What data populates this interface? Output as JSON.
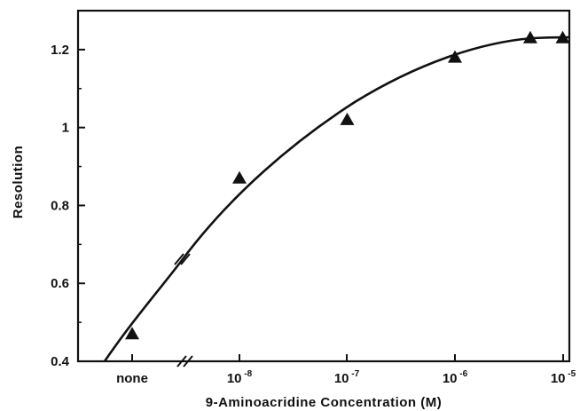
{
  "chart_data": {
    "type": "scatter",
    "xlabel": "9-Aminoacridine  Concentration  (M)",
    "ylabel": "Resolution",
    "ylim": [
      0.4,
      1.3
    ],
    "x_tick_labels": [
      {
        "base": "none",
        "exp": ""
      },
      {
        "base": "10",
        "exp": "-8"
      },
      {
        "base": "10",
        "exp": "-7"
      },
      {
        "base": "10",
        "exp": "-6"
      },
      {
        "base": "10",
        "exp": "-5"
      }
    ],
    "y_ticks": [
      "0.4",
      "0.6",
      "0.8",
      "1",
      "1.2"
    ],
    "x_scale": "log10 concentration (M), with 'none' = no 9-aminoacridine; broken axis between none and 1e-8",
    "series": [
      {
        "marker": "triangle",
        "points": [
          {
            "x": "none",
            "y": 0.47
          },
          {
            "x": "1e-8",
            "y": 0.87
          },
          {
            "x": "1e-7",
            "y": 1.02
          },
          {
            "x": "1e-6",
            "y": 1.18
          },
          {
            "x": "5e-6",
            "y": 1.23
          },
          {
            "x": "1e-5",
            "y": 1.23
          }
        ]
      }
    ],
    "fit_curve": true,
    "grid": false
  }
}
